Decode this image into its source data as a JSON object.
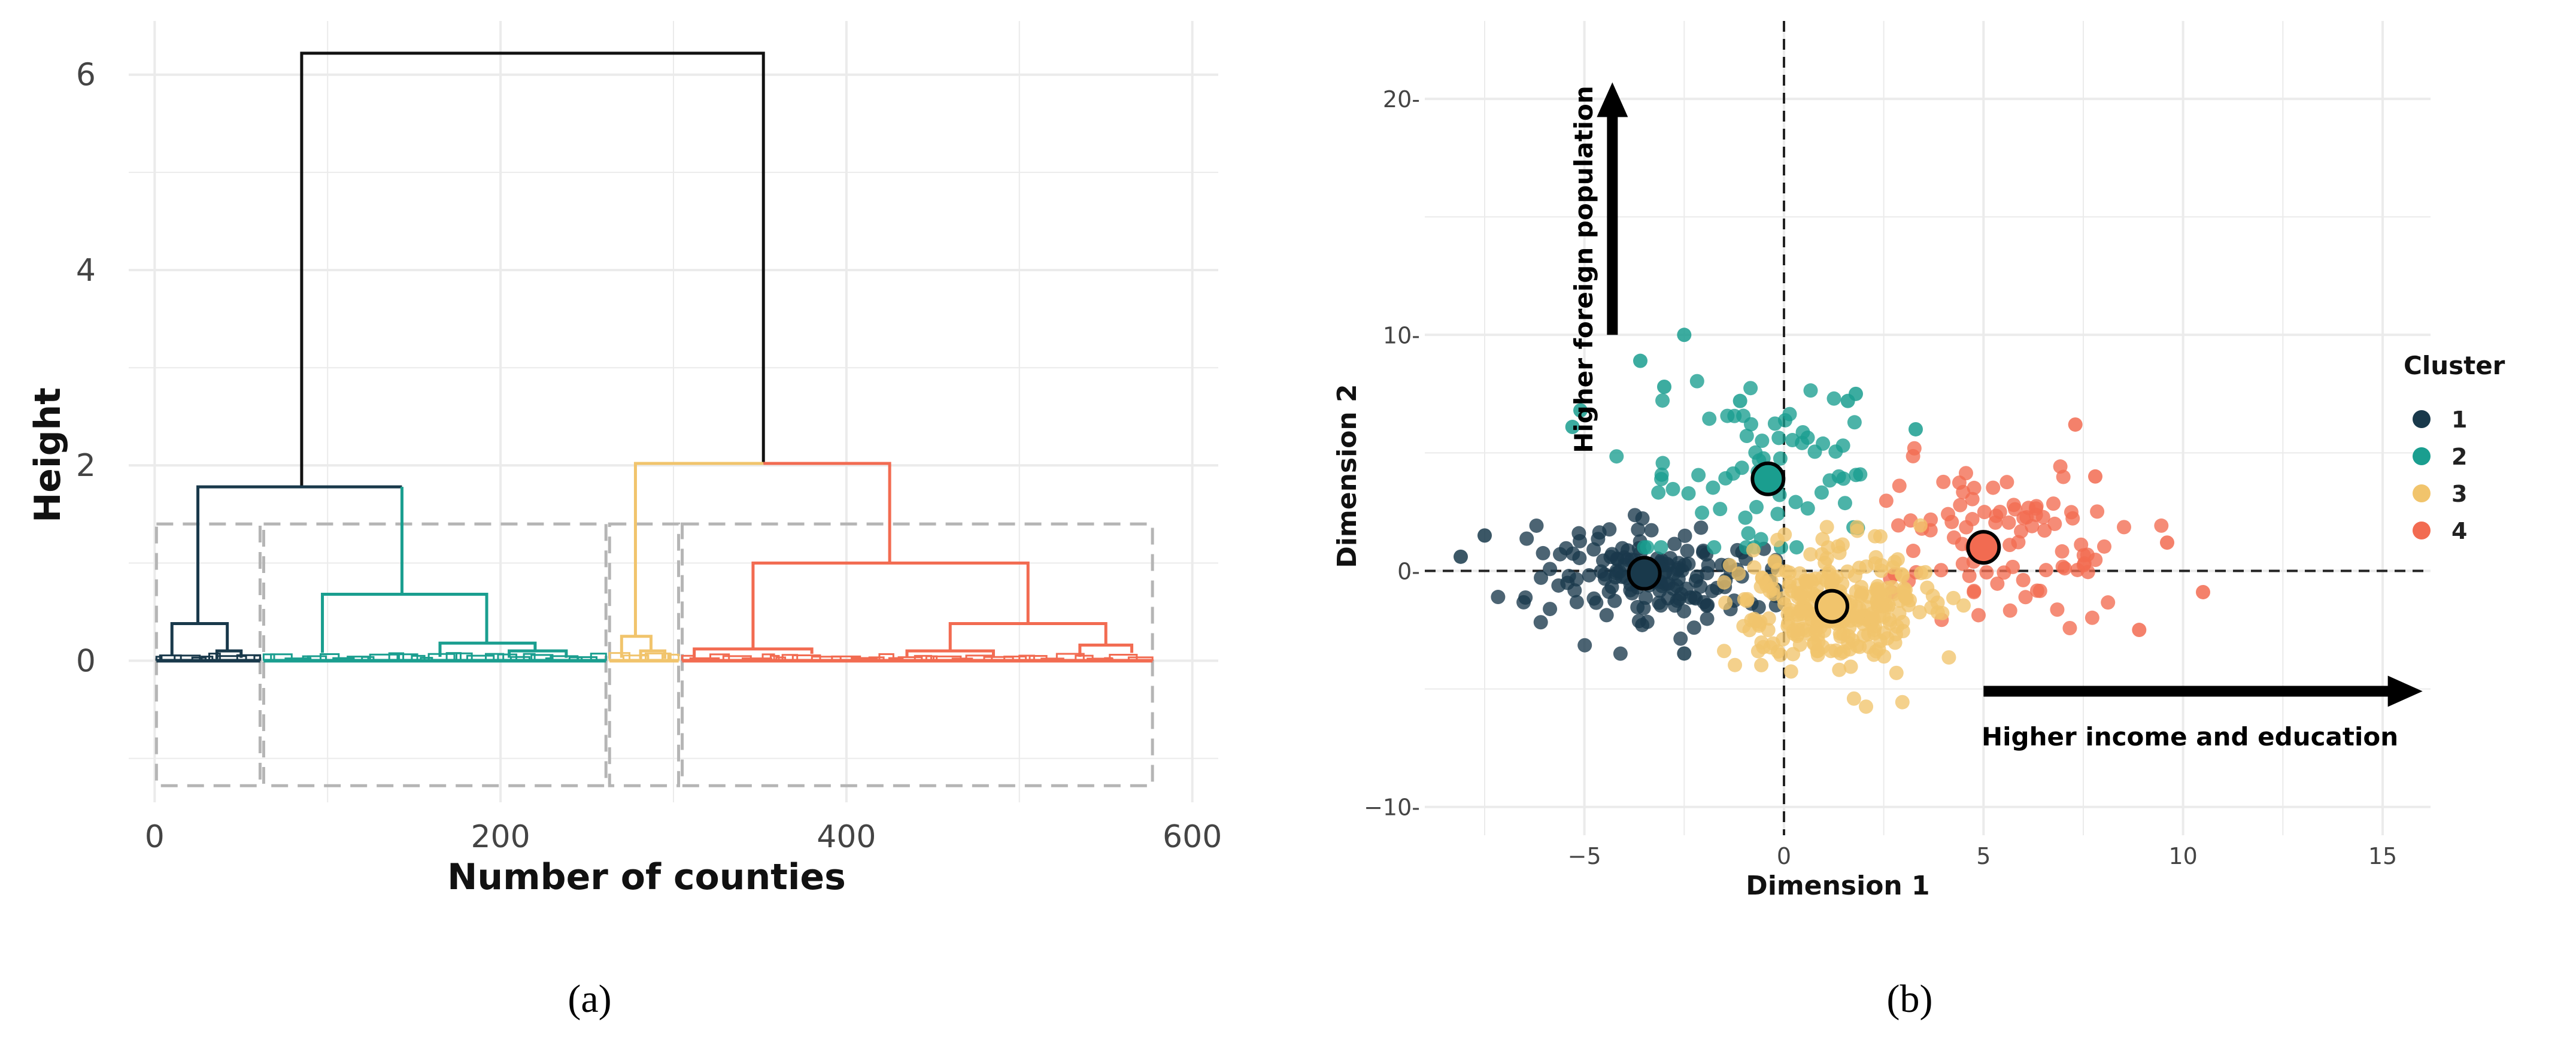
{
  "colors": {
    "cluster1": "#19394b",
    "cluster2": "#1a9e8f",
    "cluster3": "#f1c46c",
    "cluster4": "#f26b51",
    "root": "#111111",
    "grid": "#ebebeb",
    "box": "#b5b5b5"
  },
  "chart_data": [
    {
      "type": "dendrogram",
      "caption": "(a)",
      "xlabel": "Number of counties",
      "ylabel": "Height",
      "xlim": [
        -15,
        615
      ],
      "ylim": [
        -1.45,
        6.55
      ],
      "xticks": [
        0,
        200,
        400,
        600
      ],
      "xtick_labels": [
        "0",
        "200",
        "400",
        "600"
      ],
      "yticks": [
        0,
        2,
        4,
        6
      ],
      "ytick_labels": [
        "0",
        "2",
        "4",
        "6"
      ],
      "leaves": 578,
      "clusters": [
        {
          "name": "1",
          "range": [
            0,
            62
          ],
          "color_key": "cluster1"
        },
        {
          "name": "2",
          "range": [
            62,
            262
          ],
          "color_key": "cluster2"
        },
        {
          "name": "3",
          "range": [
            262,
            304
          ],
          "color_key": "cluster3"
        },
        {
          "name": "4",
          "range": [
            304,
            578
          ],
          "color_key": "cluster4"
        }
      ],
      "merges": [
        {
          "c": "root",
          "x1": 85,
          "x2": 352,
          "h": 6.22,
          "y1": 1.78,
          "y2": 2.02
        },
        {
          "c": "cluster1",
          "x1": 25,
          "x2": 143,
          "h": 1.78,
          "y1": 0.38,
          "y2": 1.78
        },
        {
          "c": "cluster2",
          "x1": 143,
          "x2": 143,
          "h": 1.78,
          "y1": 0.68,
          "y2": 0.68
        },
        {
          "c": "cluster3",
          "x1": 278,
          "x2": 352,
          "h": 2.02,
          "y1": 0.25,
          "y2": 2.02
        },
        {
          "c": "cluster4",
          "x1": 352,
          "x2": 425,
          "h": 2.02,
          "y1": 2.02,
          "y2": 1.0
        },
        {
          "c": "cluster1",
          "x1": 10,
          "x2": 42,
          "h": 0.38,
          "y1": 0.05,
          "y2": 0.1
        },
        {
          "c": "cluster1",
          "x1": 36,
          "x2": 50,
          "h": 0.1,
          "y1": 0.02,
          "y2": 0.03
        },
        {
          "c": "cluster2",
          "x1": 97,
          "x2": 192,
          "h": 0.68,
          "y1": 0.08,
          "y2": 0.18
        },
        {
          "c": "cluster2",
          "x1": 165,
          "x2": 220,
          "h": 0.18,
          "y1": 0.04,
          "y2": 0.1
        },
        {
          "c": "cluster2",
          "x1": 205,
          "x2": 238,
          "h": 0.1,
          "y1": 0.03,
          "y2": 0.03
        },
        {
          "c": "cluster3",
          "x1": 270,
          "x2": 287,
          "h": 0.25,
          "y1": 0.03,
          "y2": 0.1
        },
        {
          "c": "cluster3",
          "x1": 281,
          "x2": 295,
          "h": 0.1,
          "y1": 0.02,
          "y2": 0.02
        },
        {
          "c": "cluster4",
          "x1": 346,
          "x2": 505,
          "h": 1.0,
          "y1": 0.12,
          "y2": 0.38
        },
        {
          "c": "cluster4",
          "x1": 312,
          "x2": 380,
          "h": 0.12,
          "y1": 0.03,
          "y2": 0.07
        },
        {
          "c": "cluster4",
          "x1": 460,
          "x2": 550,
          "h": 0.38,
          "y1": 0.1,
          "y2": 0.16
        },
        {
          "c": "cluster4",
          "x1": 435,
          "x2": 485,
          "h": 0.1,
          "y1": 0.03,
          "y2": 0.03
        },
        {
          "c": "cluster4",
          "x1": 535,
          "x2": 565,
          "h": 0.16,
          "y1": 0.04,
          "y2": 0.08
        }
      ],
      "cut_boxes": {
        "ymin": -1.28,
        "ymax": 1.4
      }
    },
    {
      "type": "scatter",
      "caption": "(b)",
      "xlabel": "Dimension 1",
      "ylabel": "Dimension 2",
      "xlim": [
        -9,
        16.2
      ],
      "ylim": [
        -11.2,
        23.3
      ],
      "xticks": [
        -5,
        0,
        5,
        10,
        15
      ],
      "xtick_labels": [
        "−5",
        "0",
        "5",
        "10",
        "15"
      ],
      "yticks": [
        -10,
        0,
        10,
        20
      ],
      "ytick_labels": [
        "−10-",
        "0-",
        "10-",
        "20-"
      ],
      "legend": {
        "title": "Cluster",
        "position": "right",
        "entries": [
          {
            "label": "1",
            "color_key": "cluster1"
          },
          {
            "label": "2",
            "color_key": "cluster2"
          },
          {
            "label": "3",
            "color_key": "cluster3"
          },
          {
            "label": "4",
            "color_key": "cluster4"
          }
        ]
      },
      "centroids": [
        {
          "cluster": "1",
          "x": -3.5,
          "y": -0.1
        },
        {
          "cluster": "2",
          "x": -0.4,
          "y": 3.9
        },
        {
          "cluster": "3",
          "x": 1.2,
          "y": -1.5
        },
        {
          "cluster": "4",
          "x": 5.0,
          "y": 1.0
        }
      ],
      "cluster_spread": [
        {
          "cluster": "1",
          "cx": -3.2,
          "cy": -0.1,
          "sx": 1.5,
          "sy": 1.1,
          "n": 170,
          "xmin": -8,
          "xmax": -0.1
        },
        {
          "cluster": "2",
          "cx": -0.4,
          "cy": 3.9,
          "sx": 1.6,
          "sy": 2.0,
          "n": 70,
          "xmin": -5.6,
          "xmax": 3.5
        },
        {
          "cluster": "3",
          "cx": 1.2,
          "cy": -1.4,
          "sx": 1.2,
          "sy": 1.3,
          "n": 290,
          "xmin": -1.5,
          "xmax": 4.5
        },
        {
          "cluster": "4",
          "cx": 5.1,
          "cy": 1.2,
          "sx": 1.6,
          "sy": 1.7,
          "n": 95,
          "xmin": 2.5,
          "xmax": 11
        }
      ],
      "extra_points": [
        {
          "cluster": "2",
          "x": -2.5,
          "y": 10.0
        },
        {
          "cluster": "2",
          "x": -3.6,
          "y": 8.9
        },
        {
          "cluster": "2",
          "x": -5.3,
          "y": 6.1
        },
        {
          "cluster": "2",
          "x": -5.1,
          "y": 6.8
        },
        {
          "cluster": "2",
          "x": -3.0,
          "y": 7.8
        },
        {
          "cluster": "2",
          "x": 1.8,
          "y": 7.5
        },
        {
          "cluster": "2",
          "x": 1.6,
          "y": 7.2
        },
        {
          "cluster": "2",
          "x": 3.3,
          "y": 6.0
        },
        {
          "cluster": "2",
          "x": -1.1,
          "y": 7.2
        },
        {
          "cluster": "4",
          "x": 7.3,
          "y": 6.2
        },
        {
          "cluster": "4",
          "x": 10.5,
          "y": -0.9
        },
        {
          "cluster": "4",
          "x": 9.6,
          "y": 1.2
        },
        {
          "cluster": "4",
          "x": 8.9,
          "y": -2.5
        },
        {
          "cluster": "4",
          "x": 7.8,
          "y": 4.0
        },
        {
          "cluster": "1",
          "x": -8.1,
          "y": 0.6
        },
        {
          "cluster": "1",
          "x": -7.5,
          "y": 1.5
        },
        {
          "cluster": "1",
          "x": -2.5,
          "y": -3.5
        }
      ],
      "annotations": {
        "x_arrow_label": "Higher income and education",
        "x_arrow": {
          "x1": 5.0,
          "x2": 16.0,
          "y": -5.1
        },
        "y_arrow_label": "Higher foreign population",
        "y_arrow": {
          "x": -4.3,
          "y1": 10.0,
          "y2": 20.7
        }
      }
    }
  ]
}
